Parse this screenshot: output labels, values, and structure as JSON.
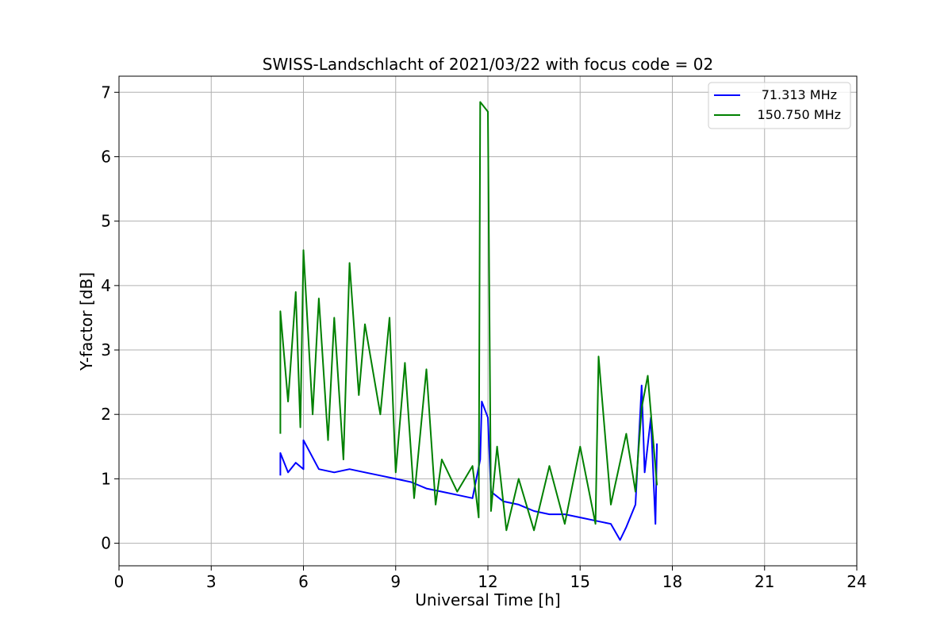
{
  "chart_data": {
    "type": "line",
    "title": "SWISS-Landschlacht of 2021/03/22 with focus code = 02",
    "xlabel": "Universal Time [h]",
    "ylabel": "Y-factor [dB]",
    "xlim": [
      0,
      24
    ],
    "ylim": [
      -0.35,
      7.25
    ],
    "xticks": [
      0,
      3,
      6,
      9,
      12,
      15,
      18,
      21,
      24
    ],
    "xtick_labels": [
      "0",
      "3",
      "6",
      "9",
      "12",
      "15",
      "18",
      "21",
      "24"
    ],
    "yticks": [
      0,
      1,
      2,
      3,
      4,
      5,
      6,
      7
    ],
    "ytick_labels": [
      "0",
      "1",
      "2",
      "3",
      "4",
      "5",
      "6",
      "7"
    ],
    "grid": true,
    "legend_position": "top-right",
    "series": [
      {
        "name": "71.313 MHz",
        "color": "#0000ff",
        "points": [
          [
            5.25,
            1.05
          ],
          [
            5.25,
            1.4
          ],
          [
            5.5,
            1.1
          ],
          [
            5.75,
            1.25
          ],
          [
            6.0,
            1.15
          ],
          [
            6.0,
            1.6
          ],
          [
            6.5,
            1.15
          ],
          [
            7.0,
            1.1
          ],
          [
            7.5,
            1.15
          ],
          [
            8.0,
            1.1
          ],
          [
            8.5,
            1.05
          ],
          [
            9.0,
            1.0
          ],
          [
            9.5,
            0.95
          ],
          [
            10.0,
            0.85
          ],
          [
            10.5,
            0.8
          ],
          [
            11.0,
            0.75
          ],
          [
            11.5,
            0.7
          ],
          [
            11.75,
            1.3
          ],
          [
            11.8,
            2.2
          ],
          [
            12.0,
            1.95
          ],
          [
            12.1,
            0.8
          ],
          [
            12.5,
            0.65
          ],
          [
            13.0,
            0.6
          ],
          [
            13.5,
            0.5
          ],
          [
            14.0,
            0.45
          ],
          [
            14.5,
            0.45
          ],
          [
            15.0,
            0.4
          ],
          [
            15.5,
            0.35
          ],
          [
            16.0,
            0.3
          ],
          [
            16.3,
            0.05
          ],
          [
            16.5,
            0.25
          ],
          [
            16.8,
            0.6
          ],
          [
            17.0,
            2.45
          ],
          [
            17.1,
            1.1
          ],
          [
            17.3,
            1.95
          ],
          [
            17.45,
            0.3
          ],
          [
            17.5,
            1.55
          ]
        ]
      },
      {
        "name": "150.750 MHz",
        "color": "#008000",
        "points": [
          [
            5.25,
            1.7
          ],
          [
            5.25,
            3.6
          ],
          [
            5.5,
            2.2
          ],
          [
            5.75,
            3.9
          ],
          [
            5.9,
            1.8
          ],
          [
            6.0,
            4.55
          ],
          [
            6.3,
            2.0
          ],
          [
            6.5,
            3.8
          ],
          [
            6.8,
            1.6
          ],
          [
            7.0,
            3.5
          ],
          [
            7.3,
            1.3
          ],
          [
            7.5,
            4.35
          ],
          [
            7.8,
            2.3
          ],
          [
            8.0,
            3.4
          ],
          [
            8.5,
            2.0
          ],
          [
            8.8,
            3.5
          ],
          [
            9.0,
            1.1
          ],
          [
            9.3,
            2.8
          ],
          [
            9.6,
            0.7
          ],
          [
            10.0,
            2.7
          ],
          [
            10.3,
            0.6
          ],
          [
            10.5,
            1.3
          ],
          [
            11.0,
            0.8
          ],
          [
            11.5,
            1.2
          ],
          [
            11.7,
            0.4
          ],
          [
            11.75,
            6.85
          ],
          [
            12.0,
            6.7
          ],
          [
            12.1,
            0.5
          ],
          [
            12.3,
            1.5
          ],
          [
            12.6,
            0.2
          ],
          [
            13.0,
            1.0
          ],
          [
            13.5,
            0.2
          ],
          [
            14.0,
            1.2
          ],
          [
            14.5,
            0.3
          ],
          [
            15.0,
            1.5
          ],
          [
            15.5,
            0.3
          ],
          [
            15.6,
            2.9
          ],
          [
            16.0,
            0.6
          ],
          [
            16.5,
            1.7
          ],
          [
            16.8,
            0.8
          ],
          [
            17.0,
            2.1
          ],
          [
            17.2,
            2.6
          ],
          [
            17.5,
            0.9
          ]
        ]
      }
    ]
  }
}
